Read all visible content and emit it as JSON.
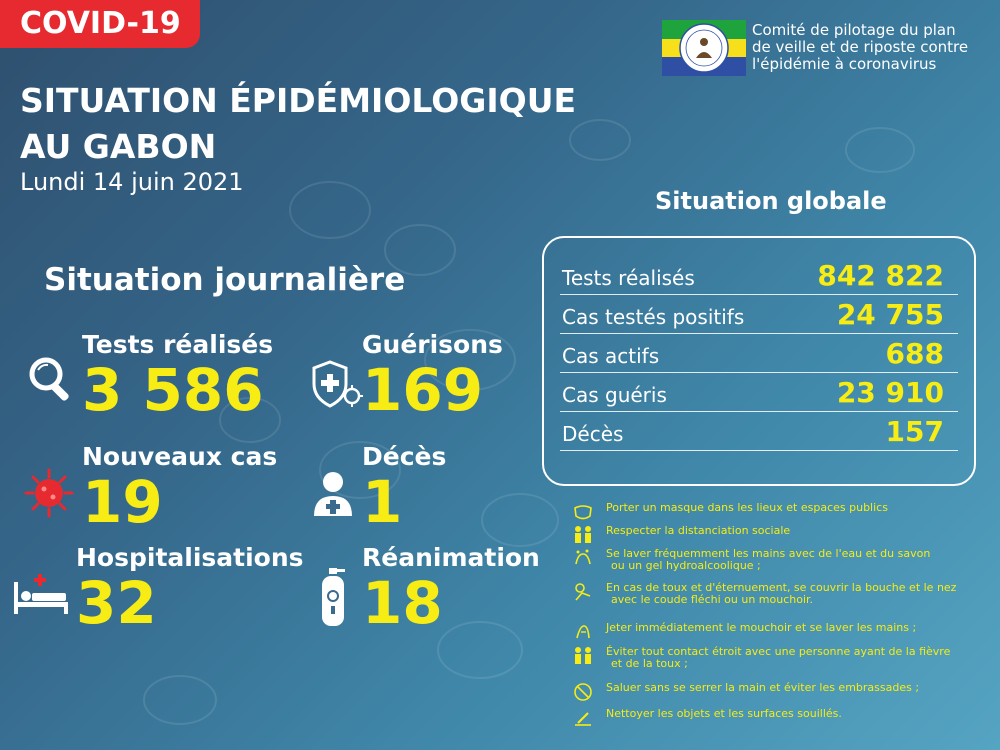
{
  "banner": {
    "tag": "COVID-19"
  },
  "header": {
    "title_line1": "SITUATION ÉPIDÉMIOLOGIQUE",
    "title_line2": "AU GABON",
    "date": "Lundi 14 juin 2021"
  },
  "committee": {
    "line1": "Comité de pilotage du plan",
    "line2": "de veille et de riposte contre",
    "line3": "l'épidémie à coronavirus",
    "flag_colors": [
      "#1fa33c",
      "#f7e01b",
      "#2e4fa3"
    ]
  },
  "global": {
    "title": "Situation globale",
    "rows": [
      {
        "label": "Tests réalisés",
        "value": "842 822"
      },
      {
        "label": "Cas testés positifs",
        "value": "24 755"
      },
      {
        "label": "Cas actifs",
        "value": "688"
      },
      {
        "label": "Cas guéris",
        "value": "23 910"
      },
      {
        "label": "Décès",
        "value": "157"
      }
    ]
  },
  "daily": {
    "title": "Situation journalière",
    "tests": {
      "label": "Tests réalisés",
      "value": "3 586",
      "icon": "magnifier-icon"
    },
    "recoveries": {
      "label": "Guérisons",
      "value": "169",
      "icon": "shield-virus-icon"
    },
    "new_cases": {
      "label": "Nouveaux cas",
      "value": "19",
      "icon": "virus-icon"
    },
    "deaths": {
      "label": "Décès",
      "value": "1",
      "icon": "person-icon"
    },
    "hospital": {
      "label": "Hospitalisations",
      "value": "32",
      "icon": "hospital-bed-icon"
    },
    "icu": {
      "label": "Réanimation",
      "value": "18",
      "icon": "oxygen-tank-icon"
    }
  },
  "advice": [
    {
      "text": "Porter un masque dans les lieux et espaces publics"
    },
    {
      "text": "Respecter la distanciation sociale"
    },
    {
      "text": "Se laver fréquemment les mains avec de l'eau et du savon",
      "text2": "ou un gel hydroalcoolique ;"
    },
    {
      "text": "En cas de toux et d'éternuement, se couvrir la bouche et le nez",
      "text2": "avec le coude fléchi ou un mouchoir."
    },
    {
      "text": "Jeter immédiatement le mouchoir et se laver les mains ;"
    },
    {
      "text": "Éviter tout contact étroit avec une personne ayant de la fièvre",
      "text2": "et de la toux ;"
    },
    {
      "text": "Saluer sans se serrer la main et éviter les embrassades ;"
    },
    {
      "text": "Nettoyer les objets et les surfaces souillés."
    }
  ],
  "colors": {
    "accent_yellow": "#f7ec13",
    "banner_red": "#e62a2f"
  }
}
